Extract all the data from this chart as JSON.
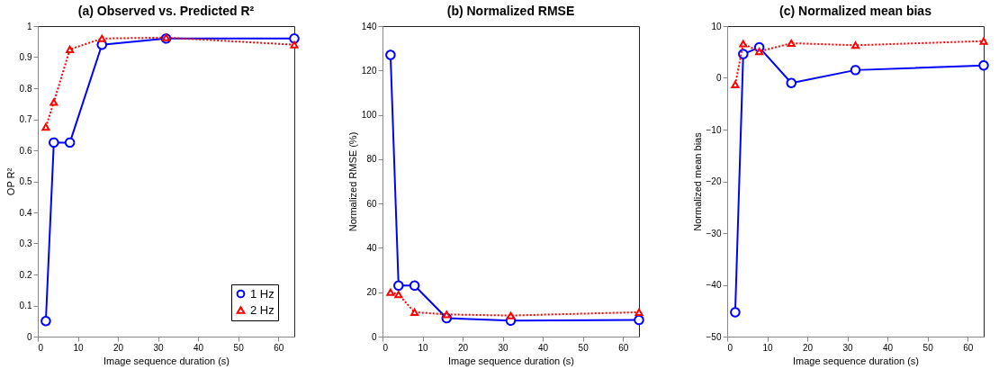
{
  "chart_data": [
    {
      "type": "line",
      "title": "(a) Observed vs. Predicted R²",
      "xlabel": "Image sequence duration (s)",
      "ylabel": "OP R²",
      "x": [
        2,
        4,
        8,
        16,
        32,
        64
      ],
      "xlim": [
        0,
        64
      ],
      "xticks": [
        0,
        10,
        20,
        30,
        40,
        50,
        60
      ],
      "ylim": [
        0,
        1
      ],
      "yticks": [
        0,
        0.1,
        0.2,
        0.3,
        0.4,
        0.5,
        0.6,
        0.7,
        0.8,
        0.9,
        1
      ],
      "grid": false,
      "legend": "bottom right",
      "series": [
        {
          "name": "1 Hz",
          "color": "#0000ff",
          "marker": "circle",
          "line_style": "solid",
          "values": [
            0.05,
            0.625,
            0.625,
            0.94,
            0.96,
            0.96
          ]
        },
        {
          "name": "2 Hz",
          "color": "#ff0000",
          "marker": "triangle",
          "line_style": "dotted",
          "values": [
            0.675,
            0.755,
            0.925,
            0.96,
            0.963,
            0.94
          ]
        }
      ]
    },
    {
      "type": "line",
      "title": "(b) Normalized RMSE",
      "xlabel": "Image sequence duration (s)",
      "ylabel": "Normalized RMSE (%)",
      "x": [
        2,
        4,
        8,
        16,
        32,
        64
      ],
      "xlim": [
        0,
        64
      ],
      "xticks": [
        0,
        10,
        20,
        30,
        40,
        50,
        60
      ],
      "ylim": [
        0,
        140
      ],
      "yticks": [
        0,
        20,
        40,
        60,
        80,
        100,
        120,
        140
      ],
      "grid": false,
      "series": [
        {
          "color": "#0000ff",
          "marker": "circle",
          "line_style": "solid",
          "values": [
            127,
            23,
            23,
            8.3,
            7.2,
            7.5
          ]
        },
        {
          "color": "#ff0000",
          "marker": "triangle",
          "line_style": "dotted",
          "values": [
            20,
            19,
            11,
            10,
            9.5,
            11
          ]
        }
      ]
    },
    {
      "type": "line",
      "title": "(c) Normalized mean bias",
      "xlabel": "Image sequence duration (s)",
      "ylabel": "Normalized mean bias",
      "x": [
        2,
        4,
        8,
        16,
        32,
        64
      ],
      "xlim": [
        0,
        64
      ],
      "xticks": [
        0,
        10,
        20,
        30,
        40,
        50,
        60
      ],
      "ylim": [
        -50,
        10
      ],
      "yticks": [
        -50,
        -40,
        -30,
        -20,
        -10,
        0,
        10
      ],
      "grid": false,
      "series": [
        {
          "color": "#0000ff",
          "marker": "circle",
          "line_style": "solid",
          "values": [
            -45.3,
            4.6,
            5.9,
            -1,
            1.5,
            2.4
          ]
        },
        {
          "color": "#ff0000",
          "marker": "triangle",
          "line_style": "dotted",
          "values": [
            -1.3,
            6.6,
            5.1,
            6.7,
            6.3,
            7.1
          ]
        }
      ]
    }
  ]
}
